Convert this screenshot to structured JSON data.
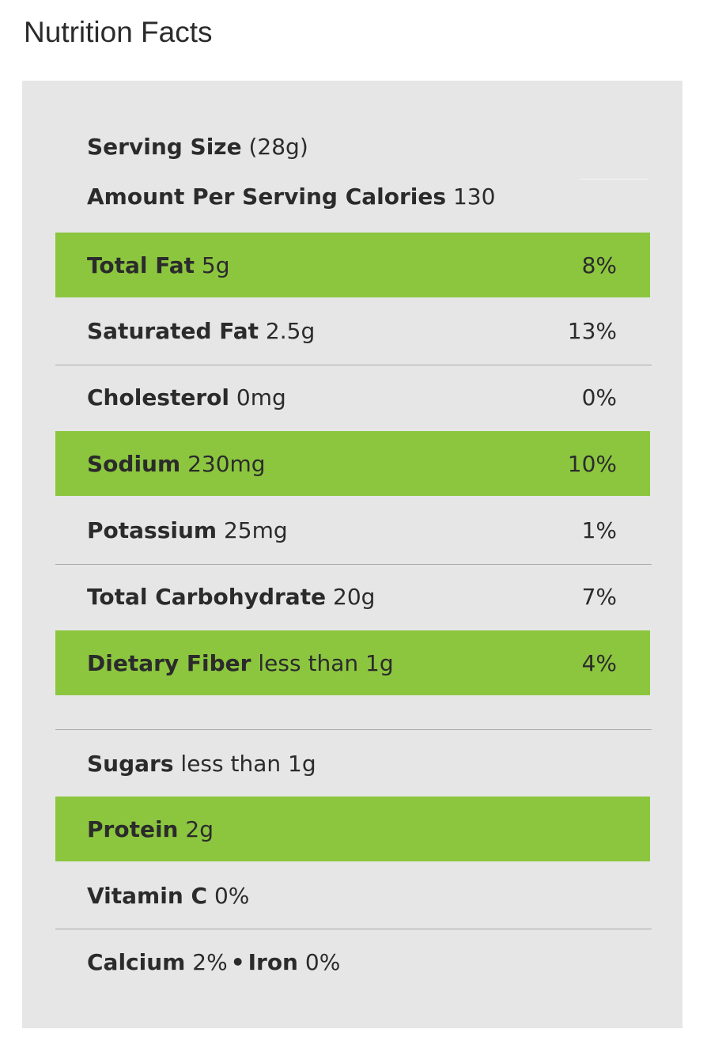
{
  "title": "Nutrition Facts",
  "serving": {
    "label": "Serving Size",
    "value": "(28g)"
  },
  "amount_per_serving": {
    "label": "Amount Per Serving Calories",
    "value": "130"
  },
  "nutrients": [
    {
      "name": "Total Fat",
      "amount": "5g",
      "dv": "8%",
      "highlight": true
    },
    {
      "name": "Saturated Fat",
      "amount": "2.5g",
      "dv": "13%",
      "highlight": false
    },
    {
      "name": "Cholesterol",
      "amount": "0mg",
      "dv": "0%",
      "highlight": false
    },
    {
      "name": "Sodium",
      "amount": "230mg",
      "dv": "10%",
      "highlight": true
    },
    {
      "name": "Potassium",
      "amount": "25mg",
      "dv": "1%",
      "highlight": false
    },
    {
      "name": "Total Carbohydrate",
      "amount": "20g",
      "dv": "7%",
      "highlight": false
    },
    {
      "name": "Dietary Fiber",
      "amount": "less than 1g",
      "dv": "4%",
      "highlight": true
    },
    {
      "name": "Sugars",
      "amount": "less than 1g",
      "dv": "",
      "highlight": false
    },
    {
      "name": "Protein",
      "amount": "2g",
      "dv": "",
      "highlight": true
    },
    {
      "name": "Vitamin C",
      "amount": "0%",
      "dv": "",
      "highlight": false
    }
  ],
  "minerals": {
    "calcium_label": "Calcium",
    "calcium_value": "2%",
    "separator": "•",
    "iron_label": "Iron",
    "iron_value": "0%"
  },
  "colors": {
    "highlight": "#8cc63f",
    "panel": "#e6e6e6",
    "text": "#2b2b2b",
    "divider": "#a9a9a9"
  }
}
